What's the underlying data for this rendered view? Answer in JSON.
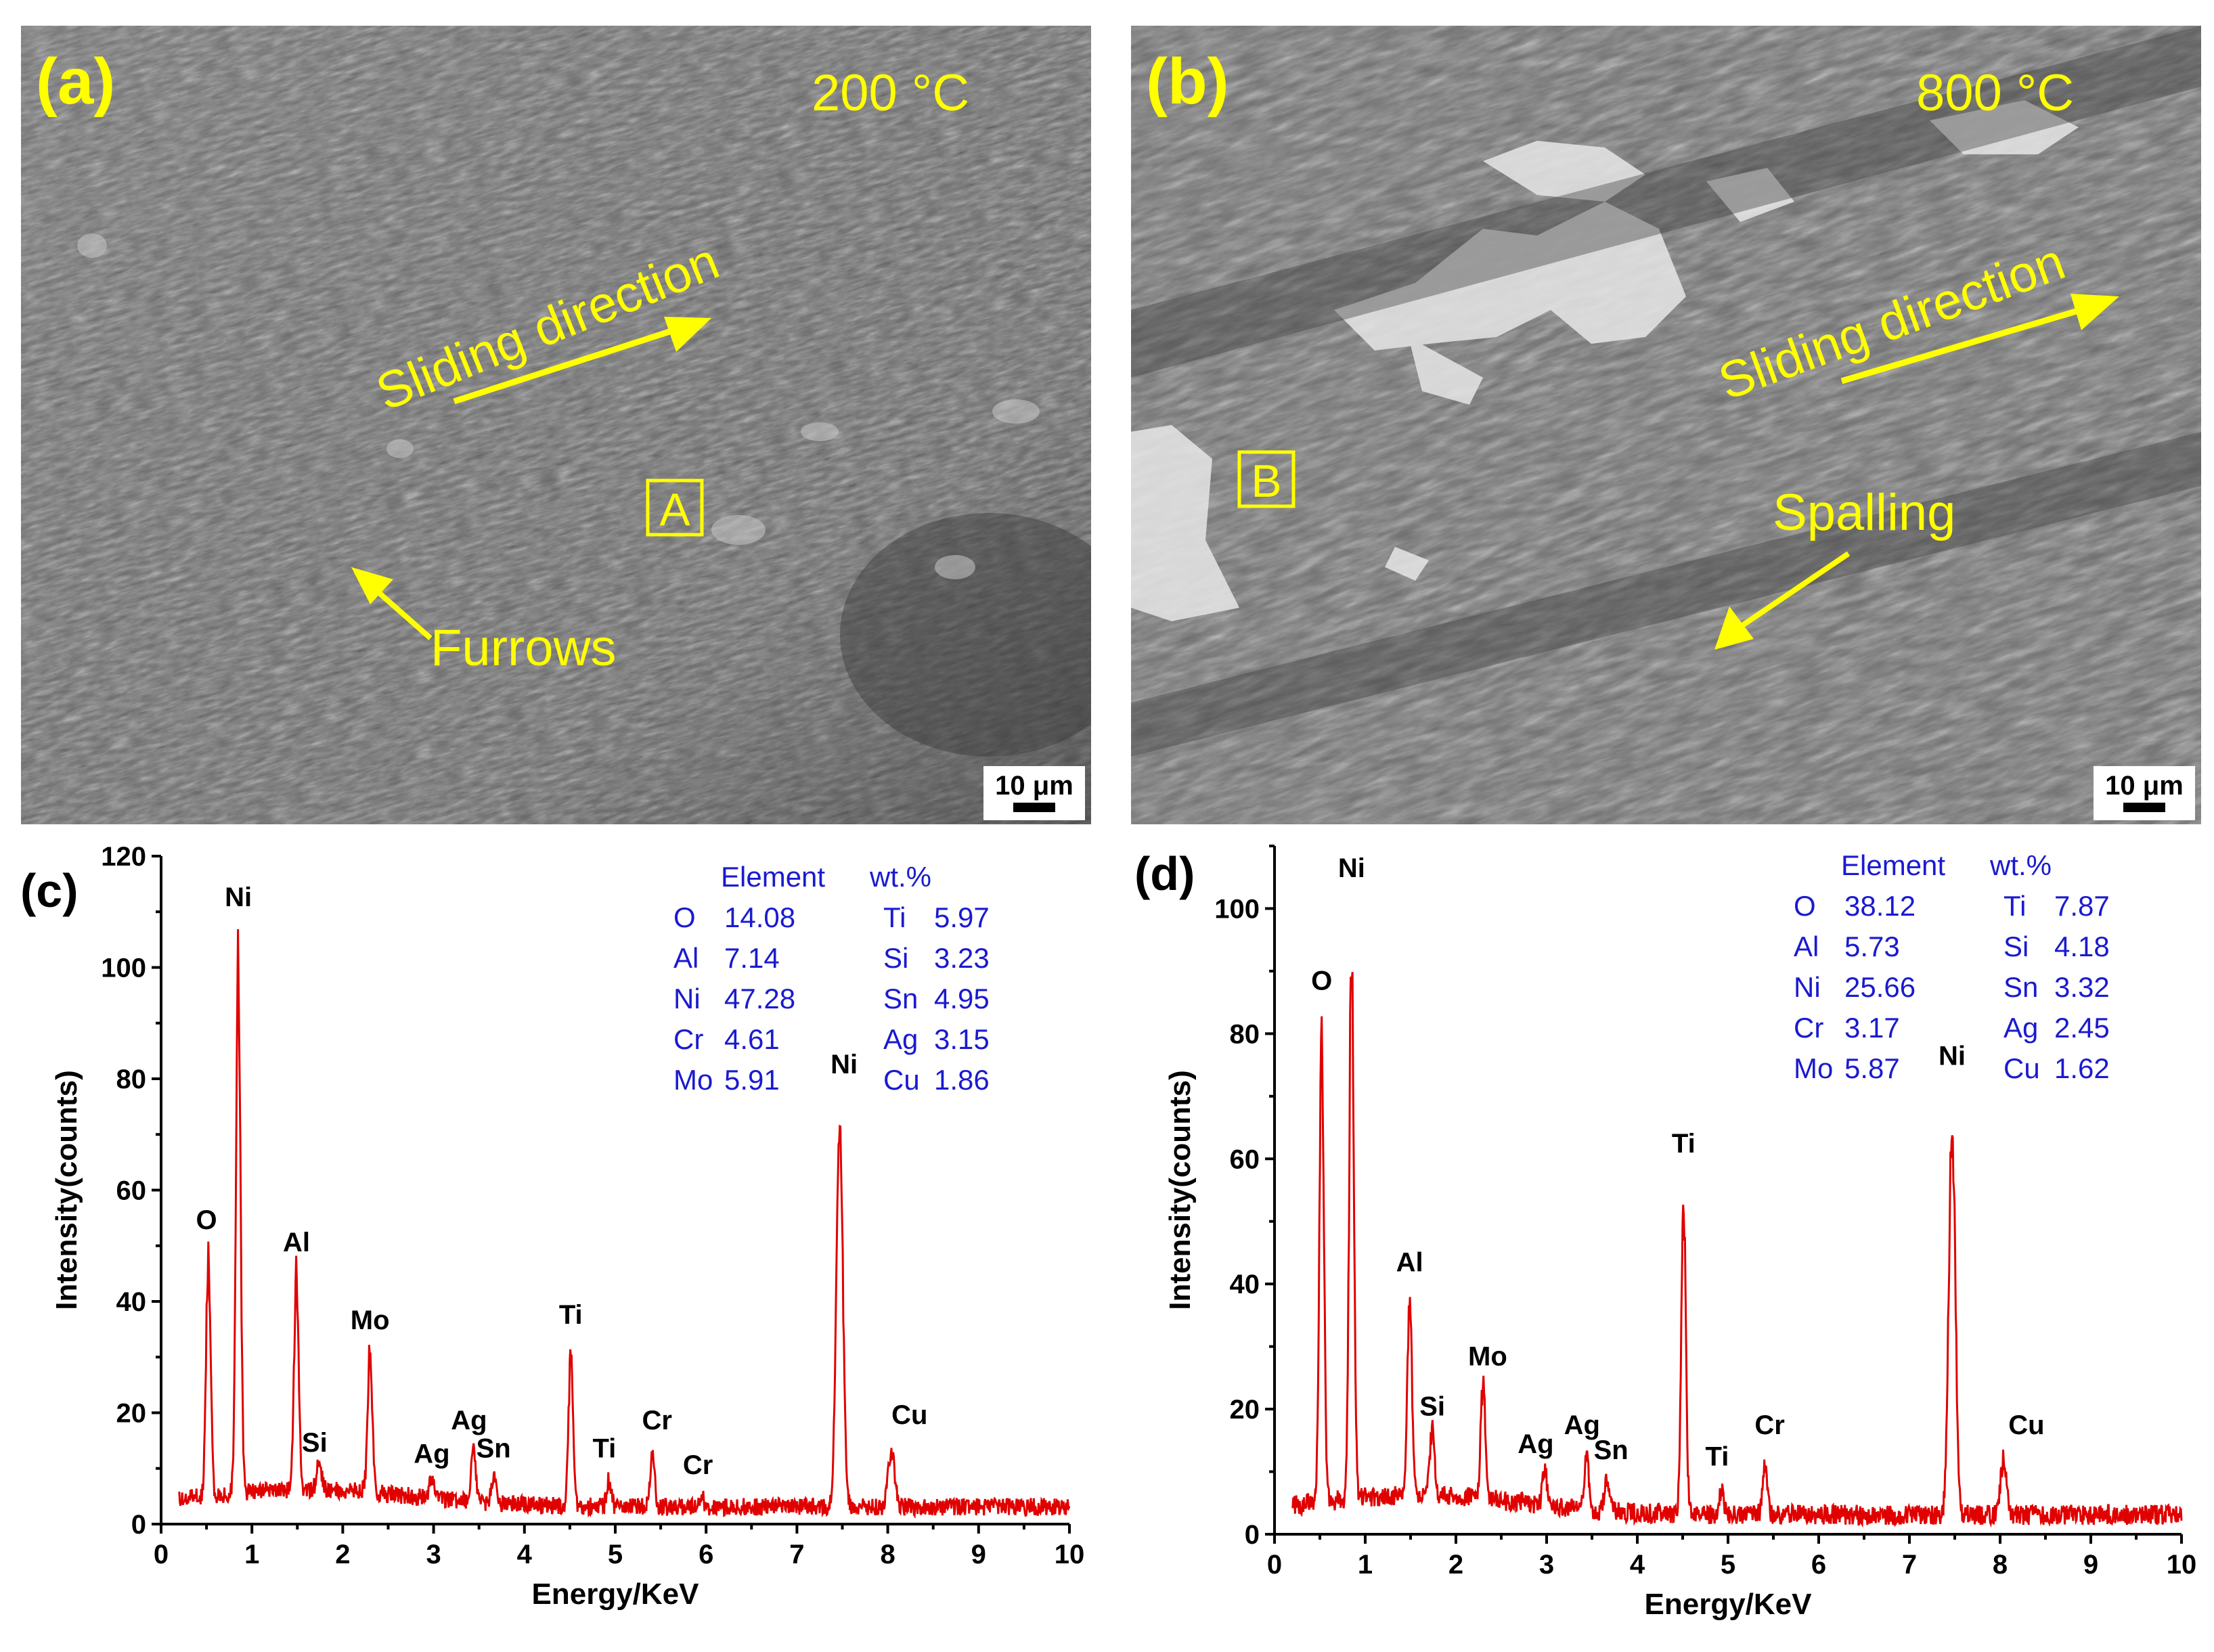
{
  "panels": {
    "a": {
      "letter": "(a)",
      "temperature": "200 °C",
      "direction_label": "Sliding direction",
      "feature_label": "Furrows",
      "region": "A",
      "scale": "10 μm"
    },
    "b": {
      "letter": "(b)",
      "temperature": "800 °C",
      "direction_label": "Sliding direction",
      "feature_label": "Spalling",
      "region": "B",
      "scale": "10 μm"
    }
  },
  "chart_data": [
    {
      "type": "line",
      "panel": "(c)",
      "xlabel": "Energy/KeV",
      "ylabel": "Intensity(counts)",
      "xlim": [
        0,
        10
      ],
      "ylim": [
        0,
        120
      ],
      "xticks": [
        0,
        1,
        2,
        3,
        4,
        5,
        6,
        7,
        8,
        9,
        10
      ],
      "yticks": [
        0,
        20,
        40,
        60,
        80,
        100,
        120
      ],
      "color": "#e00000",
      "peaks": [
        {
          "element": "O",
          "x": 0.52,
          "y": 49,
          "label_dx": -0.02,
          "label_dy": 4
        },
        {
          "element": "Ni",
          "x": 0.85,
          "y": 107,
          "label_dx": 0.0,
          "label_dy": 4
        },
        {
          "element": "Al",
          "x": 1.49,
          "y": 45,
          "label_dx": 0.0,
          "label_dy": 4
        },
        {
          "element": "Si",
          "x": 1.74,
          "y": 9,
          "label_dx": -0.05,
          "label_dy": 4
        },
        {
          "element": "Mo",
          "x": 2.3,
          "y": 31,
          "label_dx": 0.0,
          "label_dy": 4
        },
        {
          "element": "Ag",
          "x": 2.98,
          "y": 7,
          "label_dx": 0.0,
          "label_dy": 4
        },
        {
          "element": "Ag",
          "x": 3.44,
          "y": 13,
          "label_dx": -0.05,
          "label_dy": 4
        },
        {
          "element": "Sn",
          "x": 3.66,
          "y": 8,
          "label_dx": 0.0,
          "label_dy": 4
        },
        {
          "element": "Ti",
          "x": 4.51,
          "y": 32,
          "label_dx": 0.0,
          "label_dy": 4
        },
        {
          "element": "Ti",
          "x": 4.93,
          "y": 8,
          "label_dx": -0.05,
          "label_dy": 4
        },
        {
          "element": "Cr",
          "x": 5.41,
          "y": 13,
          "label_dx": 0.05,
          "label_dy": 4
        },
        {
          "element": "Cr",
          "x": 5.95,
          "y": 5,
          "label_dx": -0.04,
          "label_dy": 4
        },
        {
          "element": "Ni",
          "x": 7.47,
          "y": 77,
          "label_dx": 0.05,
          "label_dy": 4
        },
        {
          "element": "Cu",
          "x": 8.04,
          "y": 14,
          "label_dx": 0.2,
          "label_dy": 4
        }
      ],
      "composition": {
        "header": [
          "Element",
          "wt.%"
        ],
        "rows": [
          [
            "O",
            "14.08",
            "Ti",
            "5.97"
          ],
          [
            "Al",
            "7.14",
            "Si",
            "3.23"
          ],
          [
            "Ni",
            "47.28",
            "Sn",
            "4.95"
          ],
          [
            "Cr",
            "4.61",
            "Ag",
            "3.15"
          ],
          [
            "Mo",
            "5.91",
            "Cu",
            "1.86"
          ]
        ]
      }
    },
    {
      "type": "line",
      "panel": "(d)",
      "xlabel": "Energy/KeV",
      "ylabel": "Intensity(counts)",
      "xlim": [
        0,
        10
      ],
      "ylim": [
        0,
        110
      ],
      "xticks": [
        0,
        1,
        2,
        3,
        4,
        5,
        6,
        7,
        8,
        9,
        10
      ],
      "yticks": [
        0,
        20,
        40,
        60,
        80,
        100
      ],
      "color": "#e00000",
      "peaks": [
        {
          "element": "O",
          "x": 0.52,
          "y": 83,
          "label_dx": 0.0,
          "label_dy": 4
        },
        {
          "element": "Ni",
          "x": 0.85,
          "y": 101,
          "label_dx": 0.0,
          "label_dy": 4
        },
        {
          "element": "Al",
          "x": 1.49,
          "y": 38,
          "label_dx": 0.0,
          "label_dy": 4
        },
        {
          "element": "Si",
          "x": 1.74,
          "y": 15,
          "label_dx": 0.0,
          "label_dy": 4
        },
        {
          "element": "Mo",
          "x": 2.3,
          "y": 23,
          "label_dx": 0.05,
          "label_dy": 4
        },
        {
          "element": "Ag",
          "x": 2.98,
          "y": 9,
          "label_dx": -0.1,
          "label_dy": 4
        },
        {
          "element": "Ag",
          "x": 3.44,
          "y": 12,
          "label_dx": -0.05,
          "label_dy": 4
        },
        {
          "element": "Sn",
          "x": 3.66,
          "y": 8,
          "label_dx": 0.05,
          "label_dy": 4
        },
        {
          "element": "Ti",
          "x": 4.51,
          "y": 57,
          "label_dx": 0.0,
          "label_dy": 4
        },
        {
          "element": "Ti",
          "x": 4.93,
          "y": 7,
          "label_dx": -0.05,
          "label_dy": 4
        },
        {
          "element": "Cr",
          "x": 5.41,
          "y": 12,
          "label_dx": 0.05,
          "label_dy": 4
        },
        {
          "element": "Ni",
          "x": 7.47,
          "y": 71,
          "label_dx": 0.0,
          "label_dy": 4
        },
        {
          "element": "Cu",
          "x": 8.04,
          "y": 12,
          "label_dx": 0.25,
          "label_dy": 4
        }
      ],
      "composition": {
        "header": [
          "Element",
          "wt.%"
        ],
        "rows": [
          [
            "O",
            "38.12",
            "Ti",
            "7.87"
          ],
          [
            "Al",
            "5.73",
            "Si",
            "4.18"
          ],
          [
            "Ni",
            "25.66",
            "Sn",
            "3.32"
          ],
          [
            "Cr",
            "3.17",
            "Ag",
            "2.45"
          ],
          [
            "Mo",
            "5.87",
            "Cu",
            "1.62"
          ]
        ]
      }
    }
  ]
}
